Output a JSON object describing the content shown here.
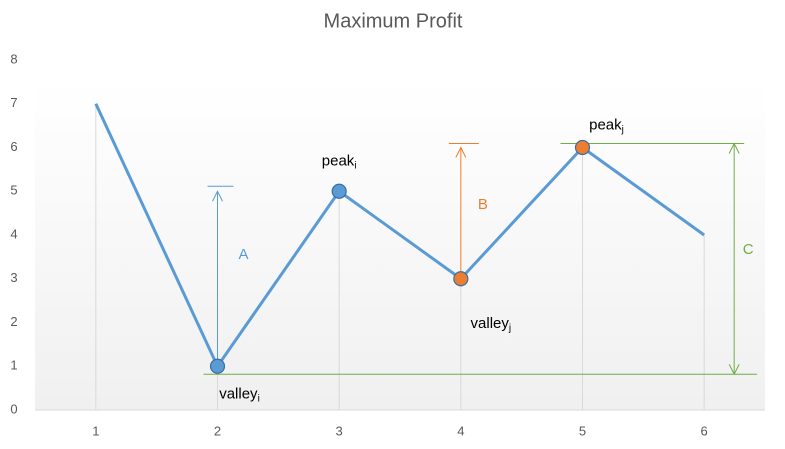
{
  "chart_data": {
    "type": "line",
    "title": "Maximum Profit",
    "x": [
      1,
      2,
      3,
      4,
      5,
      6
    ],
    "series": [
      {
        "color": "#5b9bd5",
        "values": [
          7,
          1,
          5,
          3,
          6,
          4
        ]
      }
    ],
    "xlim": [
      0.5,
      6.5
    ],
    "xticks": [
      1,
      2,
      3,
      4,
      5,
      6
    ],
    "ylim": [
      0,
      8
    ],
    "yticks": [
      0,
      1,
      2,
      3,
      4,
      5,
      6,
      7,
      8
    ],
    "markers": [
      {
        "x": 2,
        "label": "valley",
        "subscript": "i",
        "color": "#5b9bd5"
      },
      {
        "x": 3,
        "label": "peak",
        "subscript": "i",
        "color": "#5b9bd5"
      },
      {
        "x": 4,
        "label": "valley",
        "subscript": "j",
        "color": "#ed7d31"
      },
      {
        "x": 5,
        "label": "peak",
        "subscript": "j",
        "color": "#ed7d31"
      }
    ],
    "annotations": [
      {
        "text": "A",
        "color": "#5b9bd5"
      },
      {
        "text": "B",
        "color": "#ed7d31"
      },
      {
        "text": "C",
        "color": "#70ad47"
      }
    ]
  }
}
